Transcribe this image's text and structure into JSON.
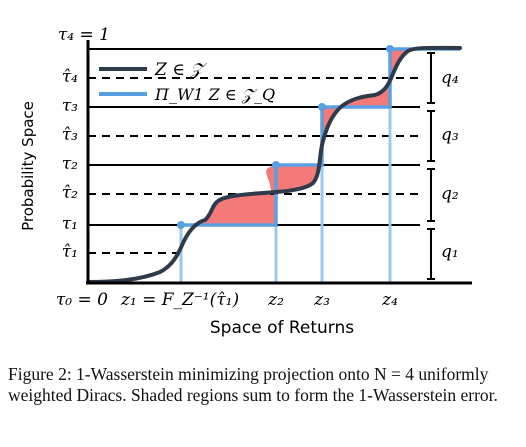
{
  "figure": {
    "y_axis_label": "Probability Space",
    "x_axis_label": "Space of Returns",
    "legend": [
      {
        "label": "Z ∈ 𝒵",
        "color": "#2f3a4a"
      },
      {
        "label": "Π_W1 Z ∈ 𝒵_Q",
        "color": "#5aa0e0"
      }
    ],
    "y_ticks": [
      {
        "label": "τ₄ = 1",
        "value": 1.0
      },
      {
        "label": "τ̂₄",
        "value": 0.875
      },
      {
        "label": "τ₃",
        "value": 0.75
      },
      {
        "label": "τ̂₃",
        "value": 0.625
      },
      {
        "label": "τ₂",
        "value": 0.5
      },
      {
        "label": "τ̂₂",
        "value": 0.375
      },
      {
        "label": "τ₁",
        "value": 0.25
      },
      {
        "label": "τ̂₁",
        "value": 0.125
      },
      {
        "label": "τ₀ = 0",
        "value": 0.0
      }
    ],
    "x_ticks": [
      {
        "label": "z₁ = F_Z⁻¹(τ̂₁)",
        "value": 1
      },
      {
        "label": "z₂",
        "value": 2
      },
      {
        "label": "z₃",
        "value": 3
      },
      {
        "label": "z₄",
        "value": 4
      }
    ],
    "brackets": [
      {
        "label": "q₁"
      },
      {
        "label": "q₂"
      },
      {
        "label": "q₃"
      },
      {
        "label": "q₄"
      }
    ],
    "colors": {
      "cdf": "#2f3a4a",
      "projection": "#5aa0e0",
      "projection_light": "#9cc8f0",
      "error_fill": "#f47a7a",
      "axis": "#000000"
    }
  },
  "caption": "Figure 2: 1-Wasserstein minimizing projection onto N = 4 uniformly weighted Diracs. Shaded regions sum to form the 1-Wasserstein error."
}
